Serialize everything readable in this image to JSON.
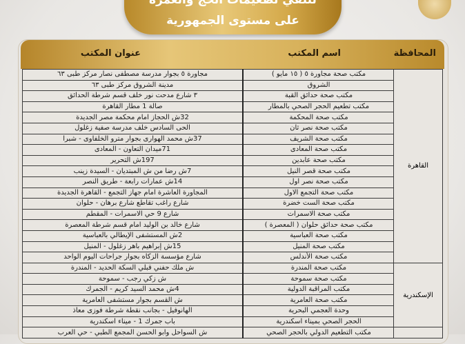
{
  "title": {
    "line1": "لتلقي تطعيمات الحج والعمرة",
    "line2": "على مستوى الجمهورية"
  },
  "columns": {
    "governorate": "المحافظة",
    "office_name": "اسم المكتب",
    "office_address": "عنوان المكتب"
  },
  "groups": [
    {
      "governorate": "القاهرة",
      "rows": [
        {
          "name": "مكتب صحة مجاورة ٥ ( ١٥ مايو )",
          "address": "مجاورة ٥ بجوار مدرسة مصطفى نصار مركز طبى ٦٣"
        },
        {
          "name": "الشروق",
          "address": "مدينة الشروق مركز طبى ٦٣"
        },
        {
          "name": "مكتب صحة حدائق القبة",
          "address": "٣ شارع مدحت نور خلف قسم شرطة الحدائق"
        },
        {
          "name": "مكتب تطعيم الحجر الصحي بالمطار",
          "address": "صالة 1 مطار القاهرة"
        },
        {
          "name": "مكتب صحة المحكمة",
          "address": "32ش الحجاز امام محكمة مصر الجديدة"
        },
        {
          "name": "مكتب صحة نصر ثان",
          "address": "الحى السادس خلف مدرسة صفية زغلول"
        },
        {
          "name": "مكتب صحة الشريف",
          "address": "37ش محمد الهوارى بجوار مترو الخلفاوى - شبرا"
        },
        {
          "name": "مكتب صحة المعادى",
          "address": "71ميدان التعاون - المعادى"
        },
        {
          "name": "مكتب صحة عابدين",
          "address": "197ش التحرير"
        },
        {
          "name": "مكتب صحة قصر النيل",
          "address": "7ش رضا من ش المبتديان - السيدة زينب"
        },
        {
          "name": "مكتب صحة نصر اول",
          "address": "14ش عمارات رابعة - طريق النصر"
        },
        {
          "name": "مكتب صحة التجمع الاول",
          "address": "المجاورة العاشرة امام جهاز التجمع - القاهرة الجديدة"
        },
        {
          "name": "مكتب صحة الست خضرة",
          "address": "شارع راغب تقاطع شارع برهان - حلوان"
        },
        {
          "name": "مكتب صحة الاسمرات",
          "address": "شارع 9 حي الاسمرات - المقطم"
        },
        {
          "name": "مكتب صحة حدائق حلوان ( المعصرة )",
          "address": "شارع خالد بن الوليد امام قسم شرطة المعصرة"
        },
        {
          "name": "مكتب صحة العباسية",
          "address": "2ش المستشفى الإيطالي بالعباسية"
        },
        {
          "name": "مكتب صحة المنيل",
          "address": "15ش إبراهيم باهر زغلول - المنيل"
        },
        {
          "name": "مكتب صحة الأندلس",
          "address": "شارع مؤسسة الزكاه بجوار جراحات اليوم الواحد"
        }
      ]
    },
    {
      "governorate": "الإسكندرية",
      "rows": [
        {
          "name": "مكتب صحة المندرة",
          "address": "ش ملك حفني قبلي السكة الحديد - المندرة"
        },
        {
          "name": "مكتب صحة سموحة",
          "address": "ش زكي رجب - سموحة"
        },
        {
          "name": "مكتب المراقبة الدولية",
          "address": "4ش محمد السيد كريم - الجمرك"
        },
        {
          "name": "مكتب صحة العامرية",
          "address": "ش القسم بجوار مستشفى العامرية"
        },
        {
          "name": "وحدة العجمي البحرية",
          "address": "الهانوفيل - بجانب نقطة شرطة فوزى معاذ"
        },
        {
          "name": "الحجر الصحي بميناء اسكندرية",
          "address": "باب جمرك 1 - ميناء اسكندرية"
        }
      ]
    },
    {
      "governorate": "",
      "rows": [
        {
          "name": "مكتب التطعيم الدولي بالحجر الصحي",
          "address": "ش السواحل وابو الحسن المجمع الطبي - حي العرب"
        }
      ]
    }
  ]
}
